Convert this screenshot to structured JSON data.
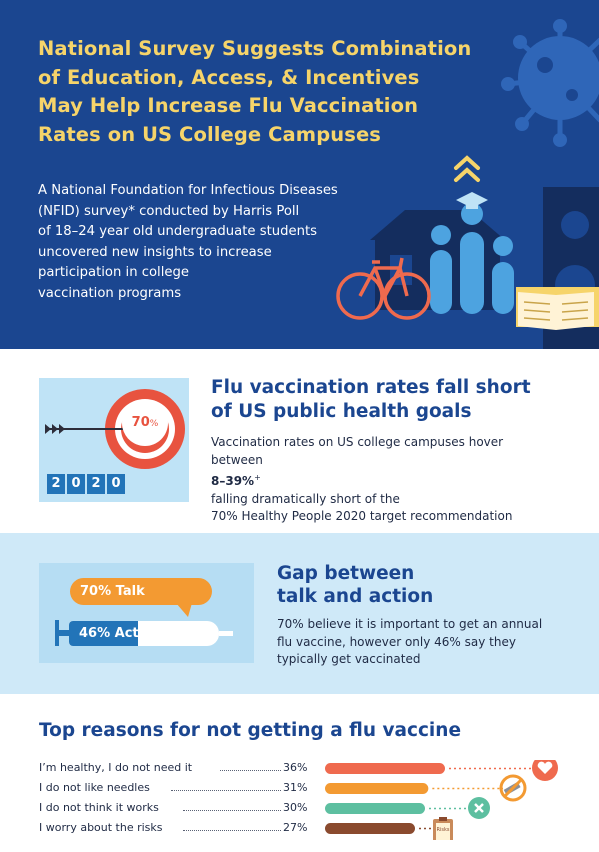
{
  "hero": {
    "title_lines": [
      "National Survey Suggests Combination",
      "of Education, Access, & Incentives",
      "May Help Increase Flu Vaccination",
      "Rates on US College Campuses"
    ],
    "body_lines": [
      "A National Foundation for Infectious Diseases",
      "(NFID) survey* conducted by Harris Poll",
      "of 18–24 year old undergraduate students",
      "uncovered new insights to increase",
      "participation in college",
      "vaccination programs"
    ],
    "icons": [
      "virus-icon",
      "chevrons-up-icon",
      "graduation-cap-icon",
      "campus-building-icon",
      "bicycle-icon",
      "students-bars-icon",
      "open-book-icon"
    ]
  },
  "section_rates": {
    "title_lines": [
      "Flu vaccination rates fall short",
      "of US public health goals"
    ],
    "body_line1": "Vaccination rates on US college campuses hover",
    "body_line2_pre": "between ",
    "body_line2_bold": "8–39%",
    "body_line2_sup": "+",
    "body_line2_post": " falling dramatically short of the",
    "body_line3": "70% Healthy People 2020 target recommendation",
    "target_value": "70",
    "target_unit": "%",
    "year_digits": [
      "2",
      "0",
      "2",
      "0"
    ]
  },
  "section_gap": {
    "title_lines": [
      "Gap between",
      "talk and action"
    ],
    "body_lines": [
      "70% believe it is important to get an annual",
      "flu vaccine, however only 46% say they",
      "typically get vaccinated"
    ],
    "talk_label": "70% Talk",
    "act_label": "46% Act",
    "act_fraction": 0.46
  },
  "section_reasons": {
    "title": "Top reasons for not getting a flu vaccine",
    "clipboard_label": "Risks"
  },
  "chart_data": {
    "type": "bar",
    "title": "Top reasons for not getting a flu vaccine",
    "categories": [
      "I’m healthy, I do not need it",
      "I do not like needles",
      "I do not think it works",
      "I worry about the risks"
    ],
    "values": [
      36,
      31,
      30,
      27
    ],
    "value_labels": [
      "36%",
      "31%",
      "30%",
      "27%"
    ],
    "bar_colors": [
      "#ef6a4e",
      "#f39a32",
      "#5dbfa0",
      "#8a4a2e"
    ],
    "orientation": "horizontal",
    "icons": [
      "heart-icon",
      "no-needle-icon",
      "x-circle-icon",
      "clipboard-icon"
    ]
  },
  "colors": {
    "navy": "#1b4690",
    "gold": "#f6d46a",
    "coral": "#ef6a4e",
    "orange": "#f39a32",
    "blue": "#2274b8",
    "light_blue": "#bfe3f6",
    "teal": "#5dbfa0",
    "brown": "#8a4a2e"
  }
}
